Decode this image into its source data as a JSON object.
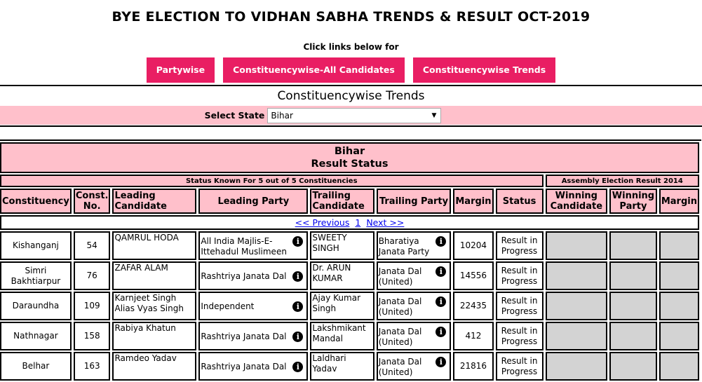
{
  "header": {
    "title": "BYE ELECTION TO VIDHAN SABHA TRENDS & RESULT OCT-2019",
    "click_text": "Click links below for"
  },
  "nav": {
    "buttons": [
      "Partywise",
      "Constituencywise-All Candidates",
      "Constituencywise Trends"
    ]
  },
  "section_title": "Constituencywise Trends",
  "state_select": {
    "label": "Select State",
    "value": "Bihar"
  },
  "table": {
    "state": "Bihar",
    "subtitle": "Result Status",
    "status_text": "Status Known For 5 out of 5 Constituencies",
    "prev_result_text": "Assembly Election Result 2014",
    "columns": [
      "Constituency",
      "Const. No.",
      "Leading Candidate",
      "Leading Party",
      "Trailing Candidate",
      "Trailing Party",
      "Margin",
      "Status",
      "Winning Candidate",
      "Winning Party",
      "Margin"
    ],
    "pager": {
      "prev": "<< Previous",
      "page": "1",
      "next": "Next >>"
    },
    "rows": [
      {
        "constituency": "Kishanganj",
        "no": "54",
        "lead_cand": "QAMRUL HODA",
        "lead_party": "All India Majlis-E-Ittehadul Muslimeen",
        "trail_cand": "SWEETY SINGH",
        "trail_party": "Bharatiya Janata Party",
        "margin": "10204",
        "status": "Result in Progress"
      },
      {
        "constituency": "Simri Bakhtiarpur",
        "no": "76",
        "lead_cand": "ZAFAR ALAM",
        "lead_party": "Rashtriya Janata Dal",
        "trail_cand": "Dr. ARUN KUMAR",
        "trail_party": "Janata Dal (United)",
        "margin": "14556",
        "status": "Result in Progress"
      },
      {
        "constituency": "Daraundha",
        "no": "109",
        "lead_cand": "Karnjeet Singh Alias Vyas Singh",
        "lead_party": "Independent",
        "trail_cand": "Ajay Kumar Singh",
        "trail_party": "Janata Dal (United)",
        "margin": "22435",
        "status": "Result in Progress"
      },
      {
        "constituency": "Nathnagar",
        "no": "158",
        "lead_cand": "Rabiya Khatun",
        "lead_party": "Rashtriya Janata Dal",
        "trail_cand": "Lakshmikant Mandal",
        "trail_party": "Janata Dal (United)",
        "margin": "412",
        "status": "Result in Progress"
      },
      {
        "constituency": "Belhar",
        "no": "163",
        "lead_cand": "Ramdeo Yadav",
        "lead_party": "Rashtriya Janata Dal",
        "trail_cand": "Laldhari Yadav",
        "trail_party": "Janata Dal (United)",
        "margin": "21816",
        "status": "Result in Progress"
      }
    ]
  },
  "colors": {
    "button": "#e91e63",
    "pink": "#ffc0cb",
    "empty_cell": "#d3d3d3",
    "link": "#0000ee"
  },
  "icons": {
    "party_info": "info-icon"
  }
}
